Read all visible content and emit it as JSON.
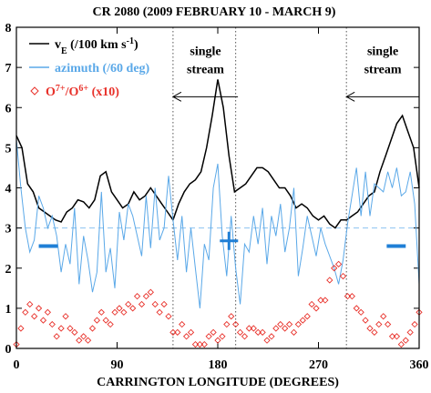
{
  "chart_data": {
    "type": "line",
    "title": "CR 2080  (2009 FEBRUARY 10 - MARCH 9)",
    "x_label": "CARRINGTON LONGITUDE  (DEGREES)",
    "xlim": [
      0,
      360
    ],
    "xticks": [
      0,
      90,
      180,
      270,
      360
    ],
    "ylim": [
      0,
      8
    ],
    "yticks": [
      0,
      1,
      2,
      3,
      4,
      5,
      6,
      7,
      8
    ],
    "legend": "upper left",
    "series": [
      {
        "name": [
          "v",
          {
            "sub": "E"
          },
          " (/100 km s",
          {
            "sup": "-1"
          },
          ")"
        ],
        "color": "#000000",
        "marker": "none",
        "x": [
          0,
          5,
          10,
          15,
          20,
          25,
          30,
          35,
          40,
          45,
          50,
          55,
          60,
          65,
          70,
          75,
          80,
          85,
          90,
          95,
          100,
          105,
          110,
          115,
          120,
          125,
          130,
          135,
          140,
          145,
          150,
          155,
          160,
          165,
          170,
          175,
          180,
          185,
          190,
          195,
          200,
          205,
          210,
          215,
          220,
          225,
          230,
          235,
          240,
          245,
          250,
          255,
          260,
          265,
          270,
          275,
          280,
          285,
          290,
          295,
          300,
          305,
          310,
          315,
          320,
          325,
          330,
          335,
          340,
          345,
          350,
          355,
          360
        ],
        "values": [
          5.3,
          5.0,
          4.1,
          3.9,
          3.5,
          3.4,
          3.3,
          3.2,
          3.15,
          3.4,
          3.5,
          3.7,
          3.65,
          3.5,
          3.7,
          4.3,
          4.4,
          3.9,
          3.7,
          3.5,
          3.6,
          3.9,
          3.7,
          3.8,
          4.0,
          3.8,
          3.6,
          3.4,
          3.2,
          3.6,
          3.9,
          4.1,
          4.2,
          4.4,
          5.0,
          5.8,
          6.7,
          6.0,
          4.8,
          3.9,
          4.0,
          4.1,
          4.3,
          4.5,
          4.5,
          4.4,
          4.2,
          4.0,
          4.0,
          3.8,
          3.5,
          3.6,
          3.5,
          3.3,
          3.2,
          3.3,
          3.1,
          3.0,
          3.2,
          3.2,
          3.3,
          3.4,
          3.6,
          3.8,
          3.9,
          4.4,
          4.8,
          5.2,
          5.6,
          5.8,
          5.4,
          5.0,
          4.0
        ]
      },
      {
        "name": "azimuth (/60 deg)",
        "color": "#5aa8e8",
        "marker": "none",
        "x": [
          0,
          4,
          8,
          12,
          16,
          20,
          24,
          28,
          32,
          36,
          40,
          44,
          48,
          52,
          56,
          60,
          64,
          68,
          72,
          76,
          80,
          84,
          88,
          92,
          96,
          100,
          104,
          108,
          112,
          116,
          120,
          124,
          128,
          132,
          136,
          140,
          144,
          148,
          152,
          156,
          160,
          164,
          168,
          172,
          176,
          180,
          184,
          188,
          192,
          196,
          200,
          204,
          208,
          212,
          216,
          220,
          224,
          228,
          232,
          236,
          240,
          244,
          248,
          252,
          256,
          260,
          264,
          268,
          272,
          276,
          280,
          284,
          288,
          292,
          296,
          300,
          304,
          308,
          312,
          316,
          320,
          324,
          328,
          332,
          336,
          340,
          344,
          348,
          352,
          356,
          360
        ],
        "values": [
          5.2,
          4.0,
          3.0,
          2.4,
          2.7,
          3.8,
          3.5,
          3.0,
          3.3,
          2.8,
          1.9,
          2.6,
          2.1,
          3.5,
          1.6,
          2.8,
          2.2,
          1.4,
          1.9,
          3.9,
          1.9,
          2.5,
          1.5,
          3.4,
          2.7,
          3.6,
          3.3,
          2.8,
          2.3,
          3.8,
          2.5,
          4.0,
          2.7,
          3.0,
          4.3,
          3.2,
          2.2,
          3.3,
          1.9,
          3.0,
          2.0,
          1.0,
          2.6,
          2.2,
          4.0,
          4.6,
          2.8,
          1.8,
          3.3,
          2.0,
          1.1,
          2.6,
          2.4,
          3.3,
          2.6,
          3.5,
          2.1,
          3.3,
          2.8,
          3.6,
          2.4,
          3.0,
          4.0,
          1.8,
          2.5,
          3.3,
          2.8,
          2.3,
          3.0,
          2.6,
          2.3,
          2.0,
          1.6,
          2.2,
          3.1,
          3.8,
          4.5,
          3.3,
          4.4,
          3.3,
          4.1,
          4.0,
          3.9,
          4.4,
          4.0,
          4.5,
          3.8,
          3.9,
          4.4,
          3.6,
          1.6
        ]
      },
      {
        "name": [
          "O",
          {
            "sup": "7+"
          },
          "/O",
          {
            "sup": "6+"
          },
          " (x10)"
        ],
        "color": "#e8312a",
        "marker": "diamond",
        "x": [
          0,
          4,
          8,
          12,
          16,
          20,
          24,
          28,
          32,
          36,
          40,
          44,
          48,
          52,
          56,
          60,
          64,
          68,
          72,
          76,
          80,
          84,
          88,
          92,
          96,
          100,
          104,
          108,
          112,
          116,
          120,
          124,
          128,
          132,
          136,
          140,
          144,
          148,
          152,
          156,
          160,
          164,
          168,
          172,
          176,
          180,
          184,
          188,
          192,
          196,
          200,
          204,
          208,
          212,
          216,
          220,
          224,
          228,
          232,
          236,
          240,
          244,
          248,
          252,
          256,
          260,
          264,
          268,
          272,
          276,
          280,
          284,
          288,
          292,
          296,
          300,
          304,
          308,
          312,
          316,
          320,
          324,
          328,
          332,
          336,
          340,
          344,
          348,
          352,
          356,
          360
        ],
        "values": [
          0.1,
          0.5,
          0.9,
          1.1,
          0.8,
          1.0,
          0.7,
          0.9,
          0.6,
          0.3,
          0.5,
          0.8,
          0.5,
          0.4,
          0.2,
          0.3,
          0.2,
          0.5,
          0.7,
          0.9,
          0.7,
          0.6,
          0.9,
          1.0,
          0.9,
          1.1,
          1.0,
          1.3,
          1.1,
          1.3,
          1.4,
          1.1,
          0.9,
          1.1,
          0.8,
          0.4,
          0.4,
          0.6,
          0.3,
          0.4,
          0.1,
          0.1,
          0.1,
          0.3,
          0.4,
          0.2,
          0.3,
          0.6,
          0.8,
          0.6,
          0.4,
          0.3,
          0.5,
          0.5,
          0.4,
          0.4,
          0.2,
          0.3,
          0.5,
          0.6,
          0.5,
          0.6,
          0.4,
          0.6,
          0.7,
          0.8,
          1.1,
          1.0,
          1.2,
          1.2,
          1.7,
          2.0,
          2.1,
          1.8,
          1.3,
          1.3,
          1.0,
          0.9,
          0.7,
          0.5,
          0.4,
          0.6,
          0.8,
          0.6,
          0.3,
          0.3,
          0.1,
          0.2,
          0.4,
          0.6,
          0.9
        ]
      }
    ],
    "reference_line": {
      "y": 3,
      "color": "#8cc3f0"
    },
    "vlines": [
      140,
      196,
      295
    ],
    "streams": [
      {
        "text": [
          "single",
          "stream"
        ],
        "x": [
          198,
          140
        ],
        "y": 6.27
      },
      {
        "text": [
          "single",
          "stream"
        ],
        "x": [
          360,
          295
        ],
        "y": 6.27
      }
    ],
    "bars": [
      {
        "x": [
          20,
          37
        ],
        "y": 2.55
      },
      {
        "x": [
          331,
          348
        ],
        "y": 2.55
      }
    ],
    "cross": {
      "x": 190,
      "y": 2.68
    },
    "marker_color": "#1f7fd6"
  }
}
